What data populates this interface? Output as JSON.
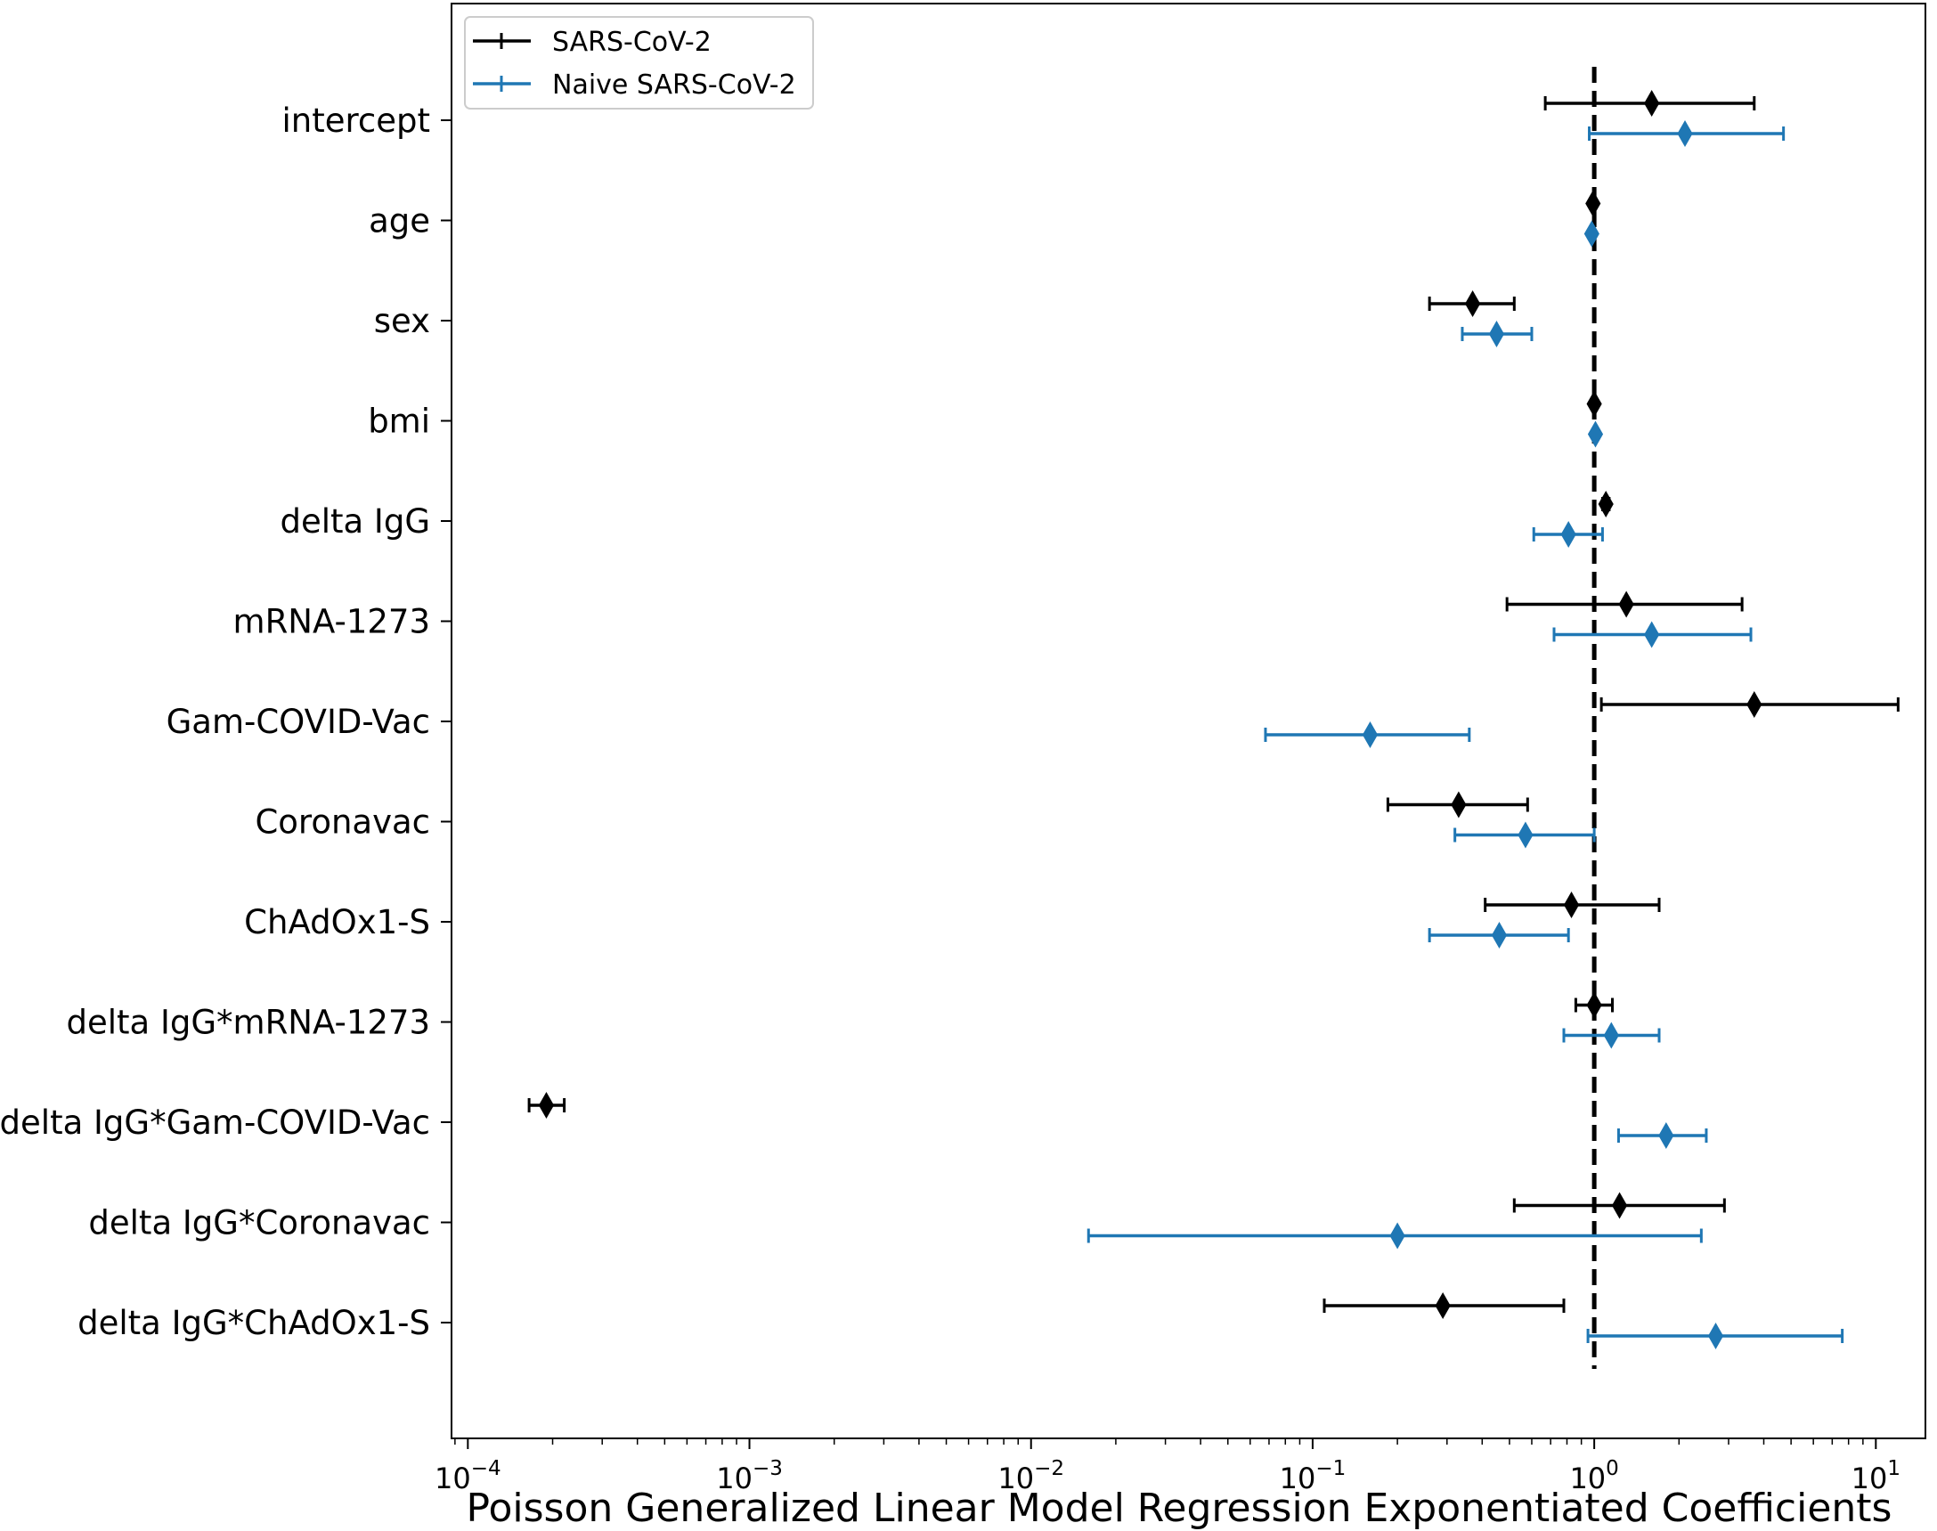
{
  "chart_data": {
    "type": "forest",
    "title": "",
    "xlabel": "Poisson Generalized Linear Model Regression Exponentiated Coefficients",
    "ylabel": "",
    "xscale": "log",
    "xlim": [
      8.75e-05,
      15
    ],
    "xticks": [
      {
        "value": 0.0001,
        "base": "10",
        "exp": "−4"
      },
      {
        "value": 0.001,
        "base": "10",
        "exp": "−3"
      },
      {
        "value": 0.01,
        "base": "10",
        "exp": "−2"
      },
      {
        "value": 0.1,
        "base": "10",
        "exp": "−1"
      },
      {
        "value": 1,
        "base": "10",
        "exp": "0"
      },
      {
        "value": 10,
        "base": "10",
        "exp": "1"
      }
    ],
    "reference_line": 1,
    "categories": [
      "intercept",
      "age",
      "sex",
      "bmi",
      "delta IgG",
      "mRNA-1273",
      "Gam-COVID-Vac",
      "Coronavac",
      "ChAdOx1-S",
      "delta IgG*mRNA-1273",
      "delta IgG*Gam-COVID-Vac",
      "delta IgG*Coronavac",
      "delta IgG*ChAdOx1-S"
    ],
    "legend_position": "top-left",
    "series": [
      {
        "name": "SARS-CoV-2",
        "color": "#000000",
        "points": [
          {
            "est": 1.6,
            "lo": 0.67,
            "hi": 3.7
          },
          {
            "est": 0.99,
            "lo": 0.985,
            "hi": 0.995
          },
          {
            "est": 0.37,
            "lo": 0.26,
            "hi": 0.52
          },
          {
            "est": 1.0,
            "lo": 0.995,
            "hi": 1.005
          },
          {
            "est": 1.1,
            "lo": 1.07,
            "hi": 1.13
          },
          {
            "est": 1.3,
            "lo": 0.49,
            "hi": 3.35
          },
          {
            "est": 3.7,
            "lo": 1.06,
            "hi": 12.0
          },
          {
            "est": 0.33,
            "lo": 0.185,
            "hi": 0.58
          },
          {
            "est": 0.83,
            "lo": 0.41,
            "hi": 1.7
          },
          {
            "est": 1.0,
            "lo": 0.86,
            "hi": 1.16
          },
          {
            "est": 0.00019,
            "lo": 0.000165,
            "hi": 0.00022
          },
          {
            "est": 1.23,
            "lo": 0.52,
            "hi": 2.9
          },
          {
            "est": 0.29,
            "lo": 0.11,
            "hi": 0.78
          }
        ]
      },
      {
        "name": "Naive SARS-CoV-2",
        "color": "#1f77b4",
        "points": [
          {
            "est": 2.1,
            "lo": 0.96,
            "hi": 4.7
          },
          {
            "est": 0.98,
            "lo": 0.975,
            "hi": 0.985
          },
          {
            "est": 0.45,
            "lo": 0.34,
            "hi": 0.6
          },
          {
            "est": 1.01,
            "lo": 1.005,
            "hi": 1.015
          },
          {
            "est": 0.81,
            "lo": 0.61,
            "hi": 1.07
          },
          {
            "est": 1.6,
            "lo": 0.72,
            "hi": 3.6
          },
          {
            "est": 0.16,
            "lo": 0.068,
            "hi": 0.36
          },
          {
            "est": 0.57,
            "lo": 0.32,
            "hi": 1.0
          },
          {
            "est": 0.46,
            "lo": 0.26,
            "hi": 0.81
          },
          {
            "est": 1.15,
            "lo": 0.78,
            "hi": 1.7
          },
          {
            "est": 1.8,
            "lo": 1.22,
            "hi": 2.5
          },
          {
            "est": 0.2,
            "lo": 0.016,
            "hi": 2.4
          },
          {
            "est": 2.7,
            "lo": 0.95,
            "hi": 7.6
          }
        ]
      }
    ]
  }
}
